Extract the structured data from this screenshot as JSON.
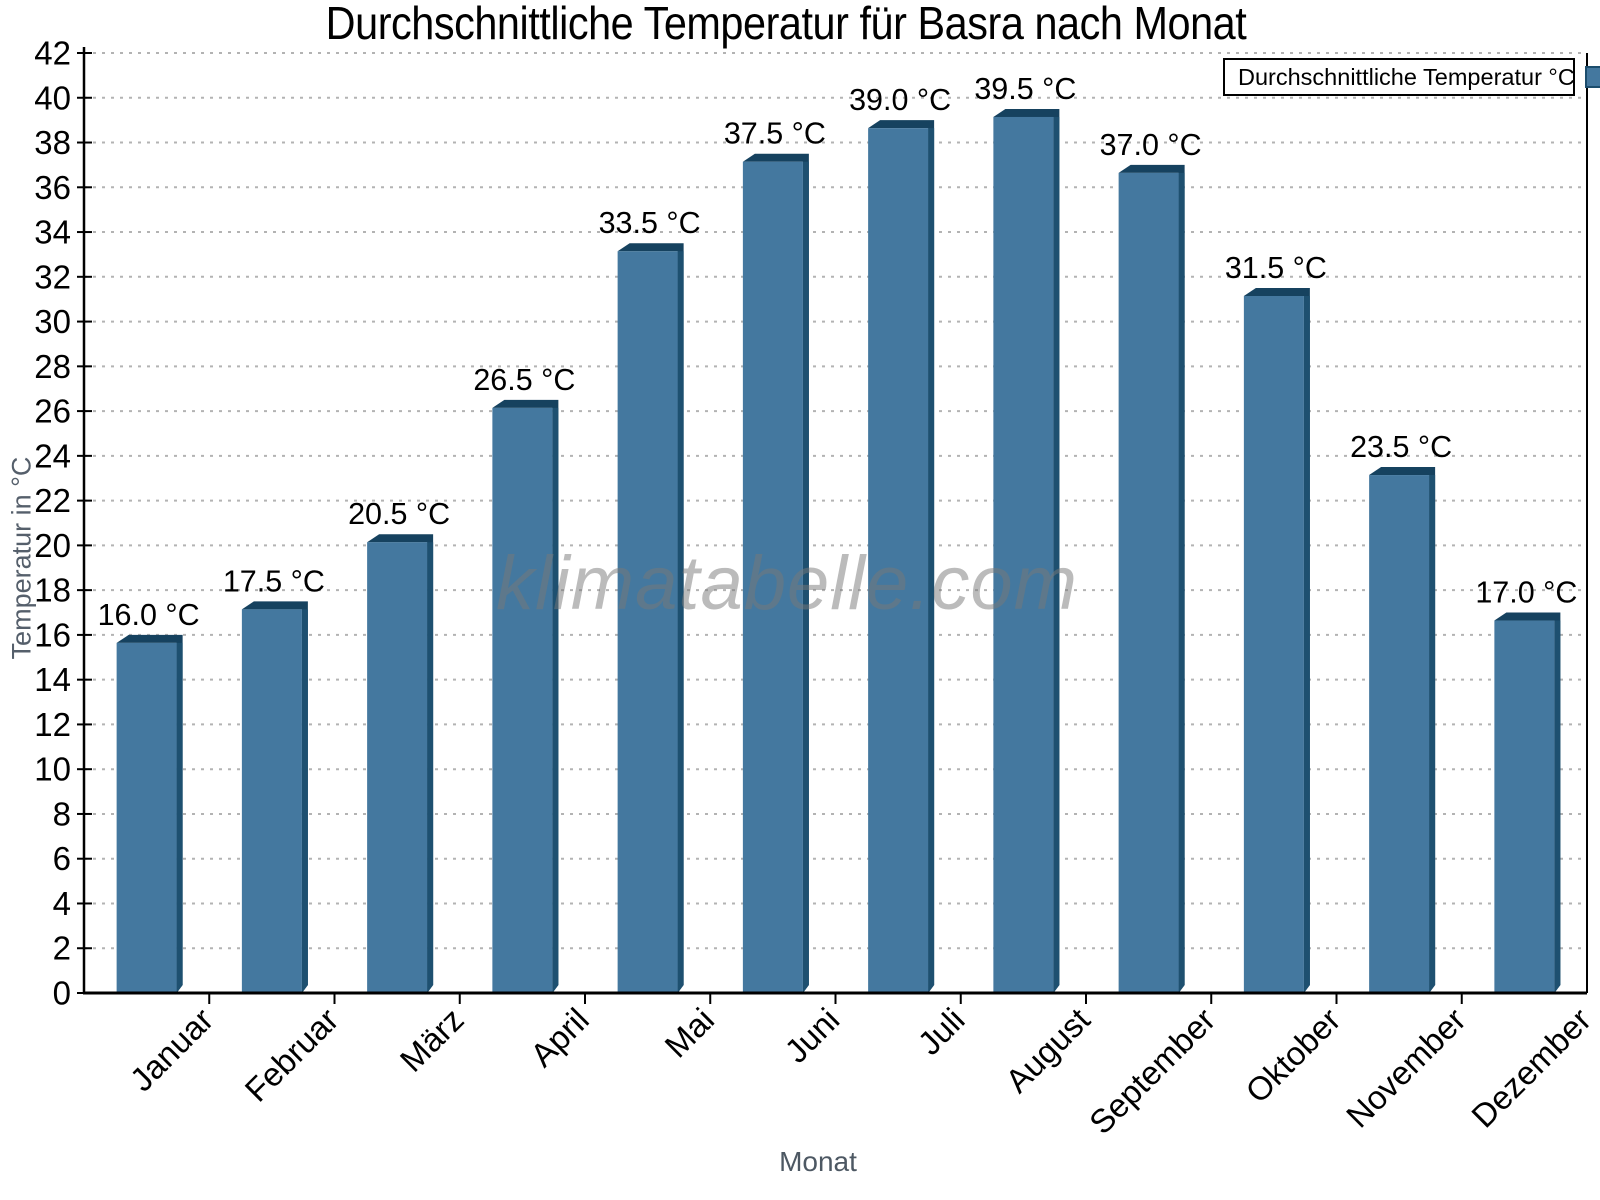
{
  "page": {
    "title": "Durchschnittliche Temperatur für Basra nach Monat",
    "watermark": "klimatabelle.com"
  },
  "legend": {
    "label": "Durchschnittliche Temperatur °C",
    "position": "top-right",
    "swatch_color": "#44789f"
  },
  "chart_data": {
    "type": "bar",
    "title": "Durchschnittliche Temperatur für Basra nach Monat",
    "xlabel": "Monat",
    "ylabel": "Temperatur in °C",
    "categories": [
      "Januar",
      "Februar",
      "März",
      "April",
      "Mai",
      "Juni",
      "Juli",
      "August",
      "September",
      "Oktober",
      "November",
      "Dezember"
    ],
    "values": [
      16.0,
      17.5,
      20.5,
      26.5,
      33.5,
      37.5,
      39.0,
      39.5,
      37.0,
      31.5,
      23.5,
      17.0
    ],
    "value_labels": [
      "16.0 °C",
      "17.5 °C",
      "20.5 °C",
      "26.5 °C",
      "33.5 °C",
      "37.5 °C",
      "39.0 °C",
      "39.5 °C",
      "37.0 °C",
      "31.5 °C",
      "23.5 °C",
      "17.0 °C"
    ],
    "series_name": "Durchschnittliche Temperatur °C",
    "ylim": [
      0,
      42
    ],
    "ytick_step": 2,
    "grid": "horizontal-dotted",
    "legend_position": "top-right",
    "x_labels_rotation_deg": -45,
    "colors": {
      "bar_face": "#44789f",
      "bar_top": "#16425f",
      "bar_side": "#1e5070",
      "grid": "#b3b3b3",
      "axis": "#000000",
      "tick_label": "#000000",
      "axis_title_gray": "#555f6b",
      "watermark_gray": "#9a9a9a"
    }
  }
}
